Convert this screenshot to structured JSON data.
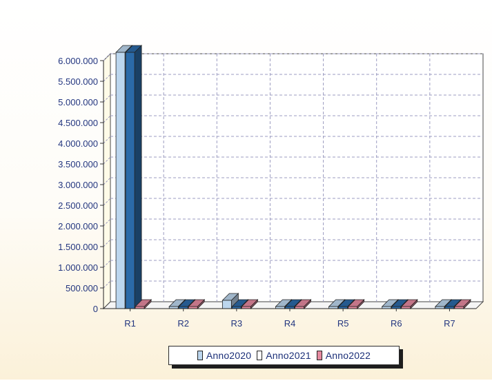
{
  "chart_data": {
    "type": "bar",
    "title": "",
    "xlabel": "",
    "ylabel": "",
    "categories": [
      "R1",
      "R2",
      "R3",
      "R4",
      "R5",
      "R6",
      "R7"
    ],
    "series": [
      {
        "name": "Anno2020",
        "color": "#bcd6ee",
        "values": [
          6200000,
          0,
          200000,
          0,
          0,
          0,
          0
        ]
      },
      {
        "name": "Anno2021",
        "color": "#2b6aa8",
        "values": [
          6200000,
          0,
          0,
          0,
          0,
          0,
          0
        ]
      },
      {
        "name": "Anno2022",
        "color": "#e58aa0",
        "values": [
          0,
          0,
          0,
          0,
          0,
          0,
          0
        ]
      }
    ],
    "ylim": [
      0,
      6000000
    ],
    "yticks": [
      0,
      500000,
      1000000,
      1500000,
      2000000,
      2500000,
      3000000,
      3500000,
      4000000,
      4500000,
      5000000,
      5500000,
      6000000
    ],
    "ytick_labels": [
      "0",
      "500.000",
      "1.000.000",
      "1.500.000",
      "2.000.000",
      "2.500.000",
      "3.000.000",
      "3.500.000",
      "4.000.000",
      "4.500.000",
      "5.000.000",
      "5.500.000",
      "6.000.000"
    ],
    "grid": true,
    "legend_position": "bottom",
    "style": "3d"
  }
}
